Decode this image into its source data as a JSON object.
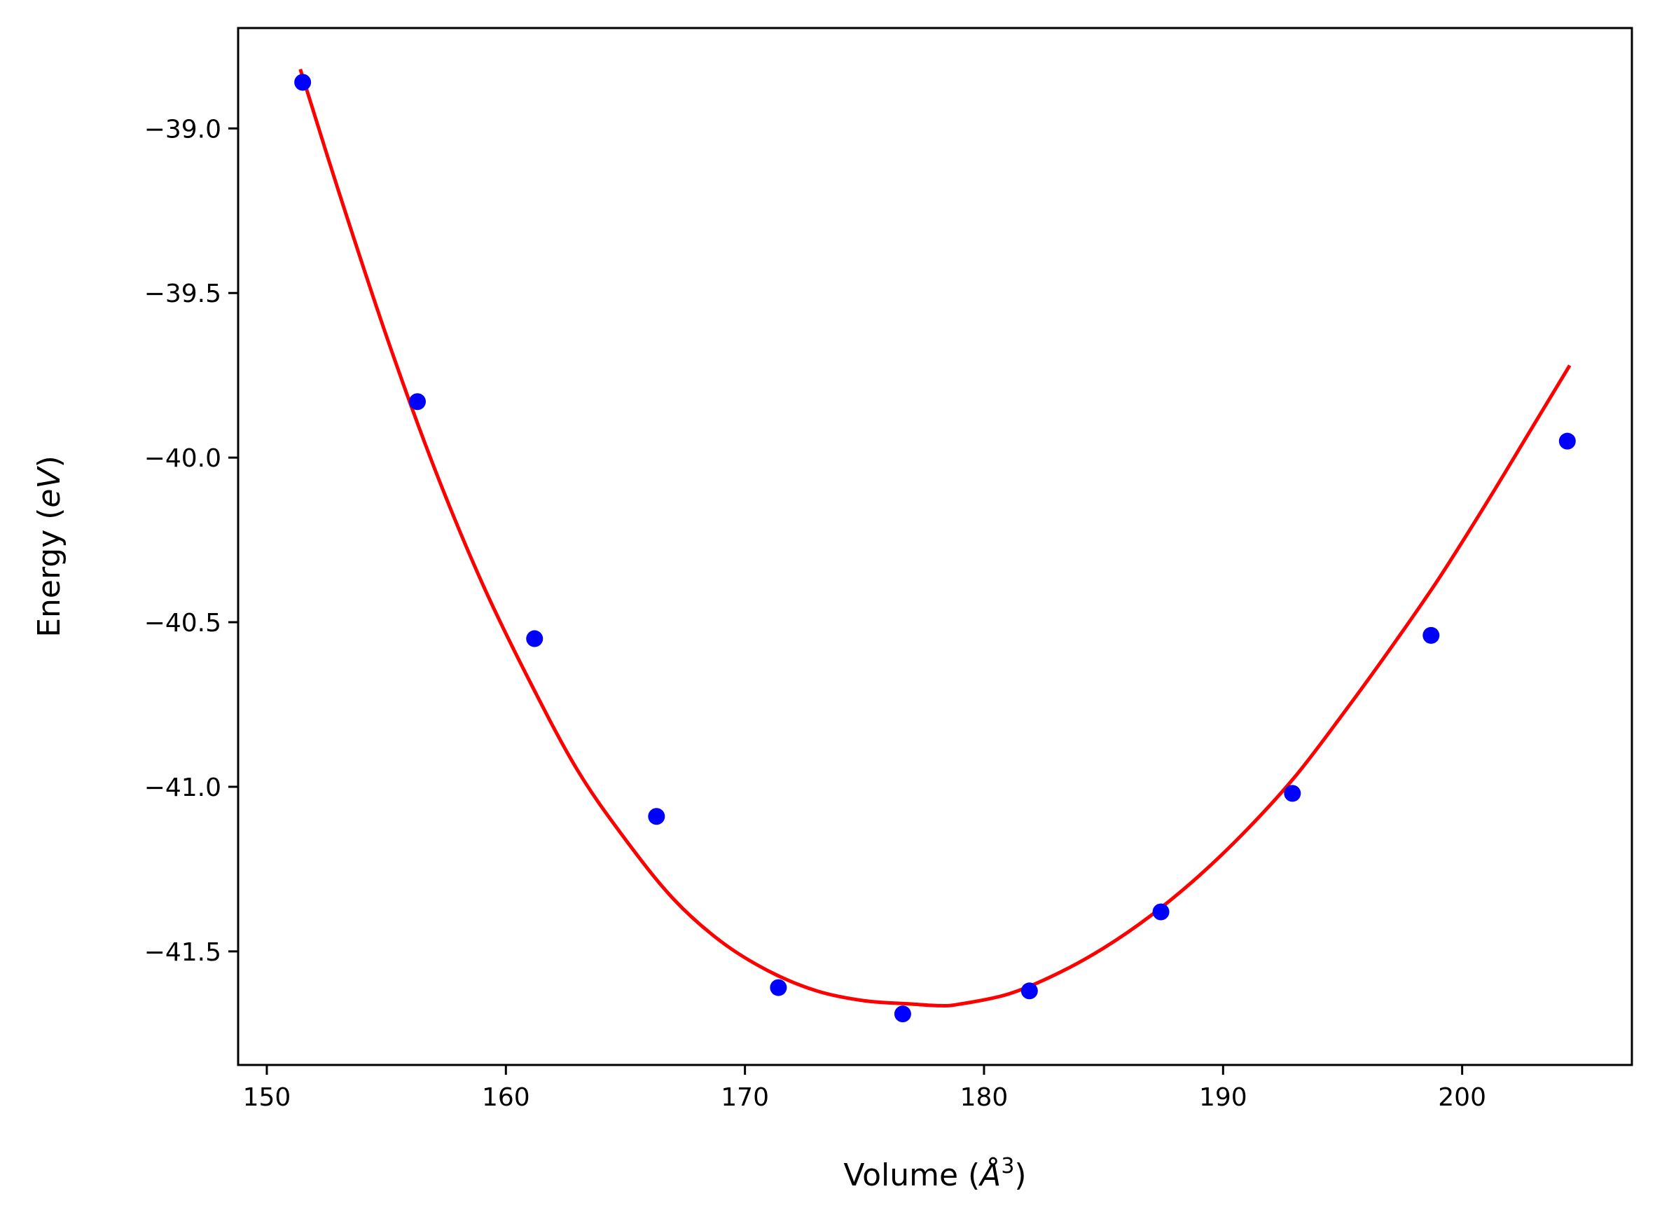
{
  "chart_data": {
    "type": "scatter",
    "title": "",
    "xlabel": {
      "prefix": "Volume (",
      "symbol": "Å",
      "exponent": "3",
      "suffix": ")"
    },
    "ylabel": {
      "prefix": "Energy (",
      "symbol": "eV",
      "suffix": ")"
    },
    "xlim": [
      148.8,
      207.1
    ],
    "ylim": [
      -41.845,
      -38.695
    ],
    "xticks": [
      150,
      160,
      170,
      180,
      190,
      200
    ],
    "xtick_labels": [
      "150",
      "160",
      "170",
      "180",
      "190",
      "200"
    ],
    "yticks": [
      -39.0,
      -39.5,
      -40.0,
      -40.5,
      -41.0,
      -41.5
    ],
    "ytick_labels": [
      "−39.0",
      "−39.5",
      "−40.0",
      "−40.5",
      "−41.0",
      "−41.5"
    ],
    "grid": false,
    "legend": false,
    "series": [
      {
        "kind": "points",
        "color": "#0000ff",
        "marker": "circle",
        "x": [
          151.5,
          156.3,
          161.2,
          166.3,
          171.4,
          176.6,
          181.9,
          187.4,
          192.9,
          198.7,
          204.4
        ],
        "y": [
          -38.86,
          -39.83,
          -40.55,
          -41.09,
          -41.61,
          -41.69,
          -41.62,
          -41.38,
          -41.02,
          -40.54,
          -39.95
        ]
      },
      {
        "kind": "fit_curve",
        "color": "#ff0000",
        "x": [
          151.4,
          153.0,
          155.0,
          157.0,
          159.0,
          161.0,
          163.0,
          165.0,
          167.0,
          169.0,
          171.0,
          173.0,
          175.0,
          177.0,
          178.2,
          179.0,
          181.0,
          183.0,
          185.0,
          187.0,
          189.0,
          191.0,
          193.0,
          195.0,
          197.0,
          199.0,
          201.0,
          203.0,
          204.5
        ],
        "y": [
          -38.82,
          -39.19,
          -39.63,
          -40.03,
          -40.38,
          -40.68,
          -40.95,
          -41.16,
          -41.34,
          -41.47,
          -41.56,
          -41.62,
          -41.65,
          -41.66,
          -41.665,
          -41.66,
          -41.63,
          -41.57,
          -41.49,
          -41.39,
          -41.27,
          -41.13,
          -40.97,
          -40.78,
          -40.58,
          -40.37,
          -40.14,
          -39.9,
          -39.72
        ]
      }
    ]
  }
}
